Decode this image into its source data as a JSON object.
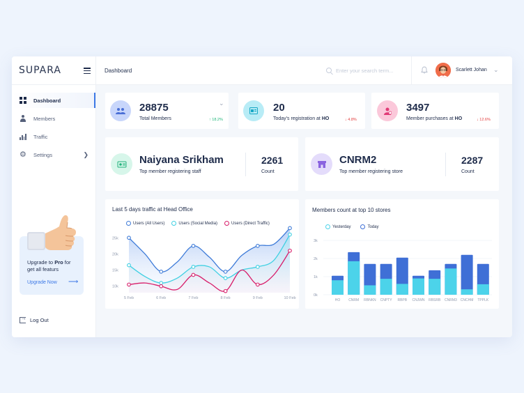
{
  "app": {
    "logo": "SUPARA"
  },
  "header": {
    "title": "Dashboard",
    "search_placeholder": "Enter your search term...",
    "user_name": "Scarlett Johan"
  },
  "sidebar": {
    "items": [
      {
        "label": "Dashboard",
        "icon": "grid-icon"
      },
      {
        "label": "Members",
        "icon": "user-icon"
      },
      {
        "label": "Traffic",
        "icon": "chart-icon"
      },
      {
        "label": "Settings",
        "icon": "gear-icon"
      }
    ],
    "upgrade": {
      "line1": "Upgrade to ",
      "pro": "Pro",
      "line1_end": " for",
      "line2": "get all featurs",
      "link": "Upgrade Now"
    },
    "logout": "Log Out"
  },
  "stats": [
    {
      "value": "28875",
      "label": "Total Members",
      "delta": "18.2%",
      "trend": "up",
      "color": "#c8d6fb"
    },
    {
      "value": "20",
      "label": "Today's registration at ",
      "label_bold": "HO",
      "delta": "4.8%",
      "trend": "down",
      "color": "#b8ecf6"
    },
    {
      "value": "3497",
      "label": "Member purchases at ",
      "label_bold": "HO",
      "delta": "12.6%",
      "trend": "down",
      "color": "#fbc8da"
    }
  ],
  "highlights": [
    {
      "name": "Naiyana Srikham",
      "sub": "Top member registering staff",
      "count": "2261",
      "count_label": "Count",
      "color": "#d7f6ea"
    },
    {
      "name": "CNRM2",
      "sub": "Top member registering store",
      "count": "2287",
      "count_label": "Count",
      "color": "#e4dcfb"
    }
  ],
  "traffic_chart": {
    "title": "Last 5 days traffic at Head Office",
    "legend": [
      "Users (All Users)",
      "Users (Social Media)",
      "Users (Direct Traffic)"
    ],
    "colors": [
      "#3e7bd8",
      "#3fd0e2",
      "#d81e6a"
    ],
    "y_ticks": [
      "25k",
      "20k",
      "15k",
      "10k"
    ],
    "x_ticks": [
      "5 Feb",
      "6 Feb",
      "7 Feb",
      "8 Feb",
      "9 Feb",
      "10 Feb"
    ]
  },
  "stores_chart": {
    "title": "Members count at top 10 stores",
    "legend": [
      "Yesterday",
      "Today"
    ],
    "colors": [
      "#4cd3ea",
      "#3f6fd6"
    ],
    "y_ticks": [
      "3k",
      "2k",
      "1k",
      "0k"
    ]
  },
  "chart_data": [
    {
      "type": "line",
      "title": "Last 5 days traffic at Head Office",
      "x": [
        "5 Feb",
        "",
        "6 Feb",
        "",
        "7 Feb",
        "",
        "8 Feb",
        "",
        "9 Feb",
        "",
        "10 Feb"
      ],
      "ylim": [
        8,
        27
      ],
      "series": [
        {
          "name": "Users (All Users)",
          "values": [
            25,
            20,
            14.5,
            17.5,
            22.5,
            19,
            14.5,
            19.5,
            22.5,
            23,
            28
          ]
        },
        {
          "name": "Users (Social Media)",
          "values": [
            16.5,
            13,
            11,
            12.5,
            16,
            16,
            12.5,
            15,
            16,
            18,
            26
          ]
        },
        {
          "name": "Users (Direct Traffic)",
          "values": [
            10.5,
            11,
            10,
            9,
            13.5,
            11,
            8.5,
            15,
            10.5,
            13.5,
            21
          ]
        }
      ]
    },
    {
      "type": "bar",
      "title": "Members count at top 10 stores",
      "categories": [
        "HO",
        "CNRM",
        "RBNKN",
        "CNPTY",
        "RBPB",
        "CNJWN",
        "RBSRB",
        "CNRM3",
        "CNCHM",
        "TPPLK"
      ],
      "ylim": [
        0,
        3000
      ],
      "series": [
        {
          "name": "Yesterday",
          "values": [
            800,
            1850,
            520,
            880,
            600,
            900,
            880,
            1450,
            300,
            580
          ]
        },
        {
          "name": "Today",
          "values": [
            1050,
            2350,
            1700,
            1700,
            2050,
            1050,
            1350,
            1700,
            2200,
            1700
          ]
        }
      ]
    }
  ]
}
